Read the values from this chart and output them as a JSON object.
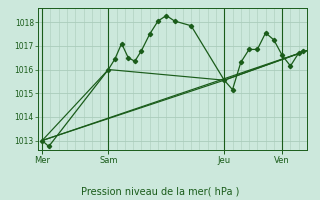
{
  "bg_color": "#cce8dc",
  "grid_color": "#aaccbb",
  "line_color": "#1a5c1a",
  "xlabel": "Pression niveau de la mer( hPa )",
  "ylim": [
    1012.6,
    1018.6
  ],
  "yticks": [
    1013,
    1014,
    1015,
    1016,
    1017,
    1018
  ],
  "day_labels": [
    "Mer",
    "Sam",
    "Jeu",
    "Ven"
  ],
  "day_positions": [
    0,
    8,
    22,
    29
  ],
  "xlim": [
    -0.5,
    32
  ],
  "series2_x": [
    0,
    8,
    22,
    32
  ],
  "series2_y": [
    1013.0,
    1016.0,
    1015.55,
    1016.8
  ],
  "series3_x": [
    0,
    22,
    32
  ],
  "series3_y": [
    1013.0,
    1015.55,
    1016.8
  ],
  "series4_x": [
    0,
    32
  ],
  "series4_y": [
    1013.0,
    1016.8
  ],
  "main_x": [
    0,
    0.8,
    8,
    8.8,
    9.6,
    10.4,
    11.2,
    12,
    13,
    14,
    15,
    16,
    18,
    22,
    23,
    24,
    25,
    26,
    27,
    28,
    29,
    30,
    31,
    31.5
  ],
  "main_y": [
    1013.0,
    1012.75,
    1016.0,
    1016.45,
    1017.1,
    1016.5,
    1016.35,
    1016.8,
    1017.5,
    1018.05,
    1018.28,
    1018.05,
    1017.85,
    1015.55,
    1015.15,
    1016.3,
    1016.85,
    1016.85,
    1017.55,
    1017.25,
    1016.6,
    1016.15,
    1016.7,
    1016.8
  ]
}
